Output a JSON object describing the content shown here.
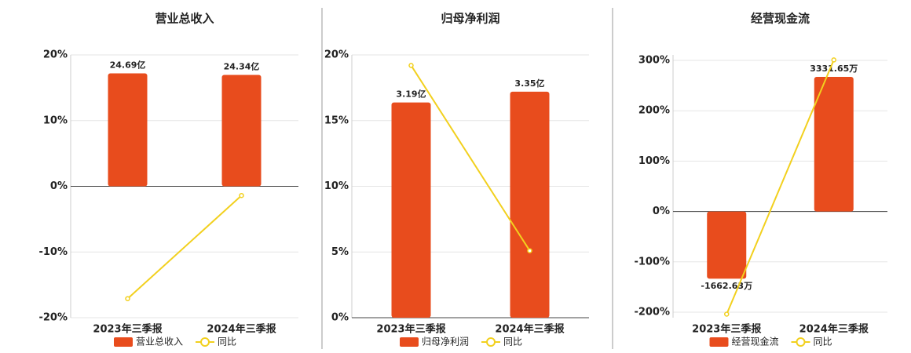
{
  "chart_data": [
    {
      "type": "combo",
      "title": "营业总收入",
      "categories": [
        "2023年三季报",
        "2024年三季报"
      ],
      "series": [
        {
          "name": "营业总收入",
          "type": "bar",
          "color": "#e84c1d",
          "values": [
            24.69,
            24.34
          ],
          "value_labels": [
            "24.69亿",
            "24.34亿"
          ]
        },
        {
          "name": "同比",
          "type": "line",
          "color": "#f2d01e",
          "values": [
            -17.1,
            -1.4
          ]
        }
      ],
      "ylim": [
        -20,
        20
      ],
      "yticks": [
        {
          "value": -20,
          "label": "-20%"
        },
        {
          "value": -10,
          "label": "-10%"
        },
        {
          "value": 0,
          "label": "0%"
        },
        {
          "value": 10,
          "label": "10%"
        },
        {
          "value": 20,
          "label": "20%"
        }
      ],
      "grid": true
    },
    {
      "type": "combo",
      "title": "归母净利润",
      "categories": [
        "2023年三季报",
        "2024年三季报"
      ],
      "series": [
        {
          "name": "归母净利润",
          "type": "bar",
          "color": "#e84c1d",
          "values": [
            3.19,
            3.35
          ],
          "value_labels": [
            "3.19亿",
            "3.35亿"
          ]
        },
        {
          "name": "同比",
          "type": "line",
          "color": "#f2d01e",
          "values": [
            19.2,
            5.1
          ]
        }
      ],
      "ylim": [
        0,
        20
      ],
      "yticks": [
        {
          "value": 0,
          "label": "0%"
        },
        {
          "value": 5,
          "label": "5%"
        },
        {
          "value": 10,
          "label": "10%"
        },
        {
          "value": 15,
          "label": "15%"
        },
        {
          "value": 20,
          "label": "20%"
        }
      ],
      "grid": true
    },
    {
      "type": "combo",
      "title": "经营现金流",
      "categories": [
        "2023年三季报",
        "2024年三季报"
      ],
      "series": [
        {
          "name": "经营现金流",
          "type": "bar",
          "color": "#e84c1d",
          "values": [
            -1662.63,
            3331.65
          ],
          "value_labels": [
            "-1662.63万",
            "3331.65万"
          ]
        },
        {
          "name": "同比",
          "type": "line",
          "color": "#f2d01e",
          "values": [
            -204,
            301
          ]
        }
      ],
      "ylim": [
        -211,
        311
      ],
      "yticks": [
        {
          "value": -200,
          "label": "-200%"
        },
        {
          "value": -100,
          "label": "-100%"
        },
        {
          "value": 0,
          "label": "0%"
        },
        {
          "value": 100,
          "label": "100%"
        },
        {
          "value": 200,
          "label": "200%"
        },
        {
          "value": 300,
          "label": "300%"
        }
      ],
      "grid": true
    }
  ]
}
